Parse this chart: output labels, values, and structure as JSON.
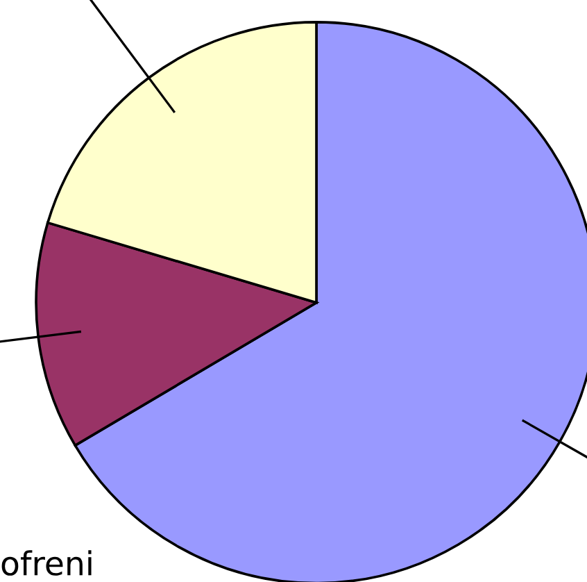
{
  "chart_data": {
    "type": "pie",
    "categories": [
      null,
      null,
      null
    ],
    "values": [
      66.5,
      13.1,
      20.4
    ],
    "colors": [
      "#9999ff",
      "#993366",
      "#ffffcc"
    ],
    "annotations": [
      "ofreni"
    ]
  }
}
